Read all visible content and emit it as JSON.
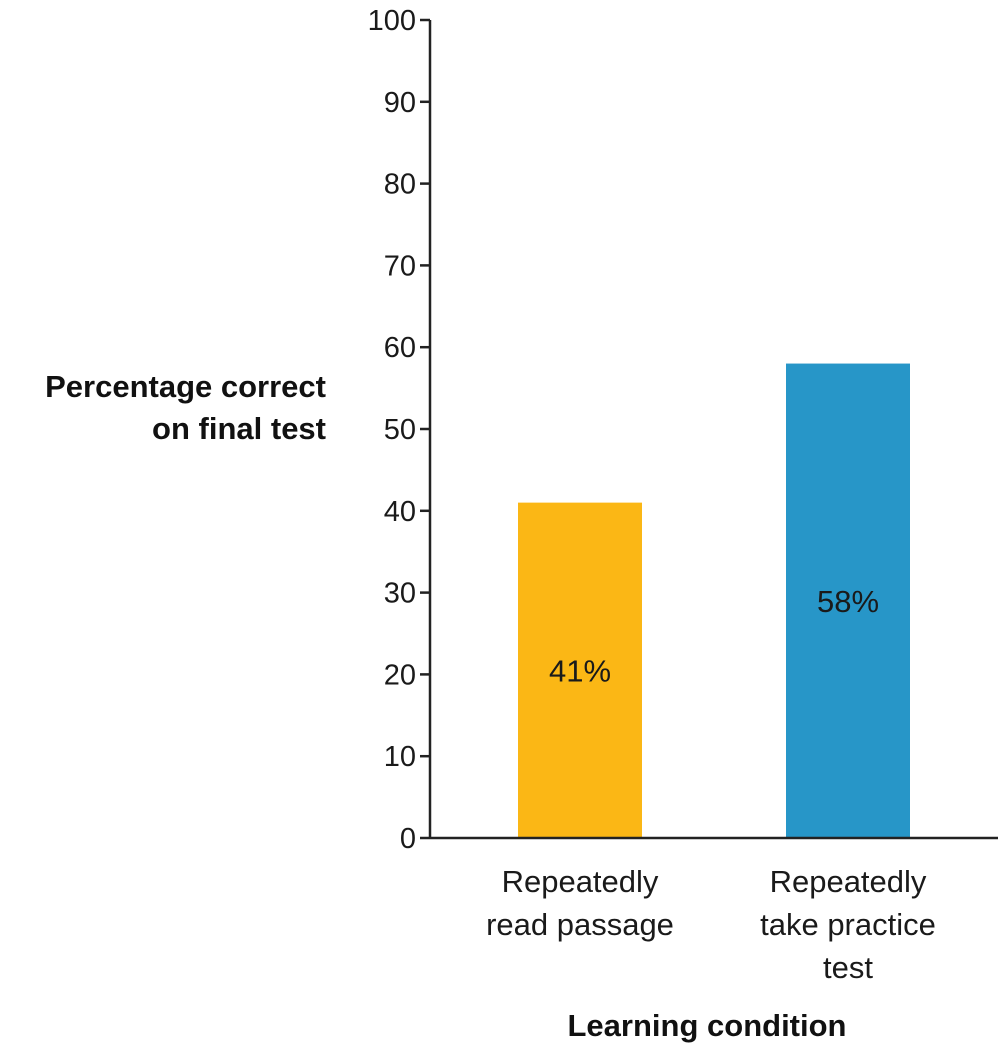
{
  "chart_data": {
    "type": "bar",
    "title": "",
    "ylabel": [
      "Percentage correct",
      "on final test"
    ],
    "xlabel": "Learning condition",
    "ylim": [
      0,
      100
    ],
    "yticks": [
      0,
      10,
      20,
      30,
      40,
      50,
      60,
      70,
      80,
      90,
      100
    ],
    "categories": [
      [
        "Repeatedly",
        "read passage"
      ],
      [
        "Repeatedly",
        "take practice",
        "test"
      ]
    ],
    "values": [
      41,
      58
    ],
    "value_labels": [
      "41%",
      "58%"
    ],
    "colors": [
      "#FBB715",
      "#2796C8"
    ],
    "grid": false,
    "legend": "none"
  }
}
